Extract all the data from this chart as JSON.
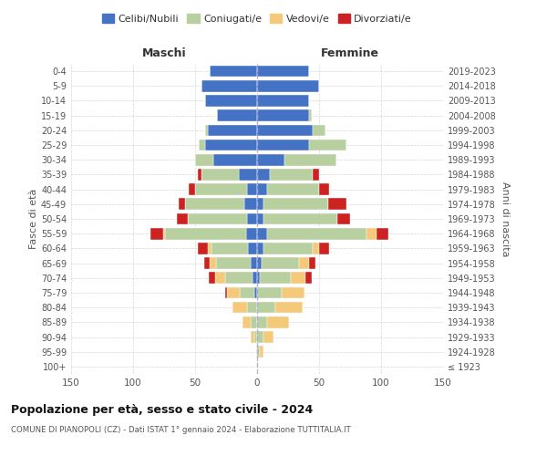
{
  "age_groups": [
    "100+",
    "95-99",
    "90-94",
    "85-89",
    "80-84",
    "75-79",
    "70-74",
    "65-69",
    "60-64",
    "55-59",
    "50-54",
    "45-49",
    "40-44",
    "35-39",
    "30-34",
    "25-29",
    "20-24",
    "15-19",
    "10-14",
    "5-9",
    "0-4"
  ],
  "birth_years": [
    "≤ 1923",
    "1924-1928",
    "1929-1933",
    "1934-1938",
    "1939-1943",
    "1944-1948",
    "1949-1953",
    "1954-1958",
    "1959-1963",
    "1964-1968",
    "1969-1973",
    "1974-1978",
    "1979-1983",
    "1984-1988",
    "1989-1993",
    "1994-1998",
    "1999-2003",
    "2004-2008",
    "2009-2013",
    "2014-2018",
    "2019-2023"
  ],
  "colors": {
    "celibi": "#4472c4",
    "coniugati": "#b8cfa0",
    "vedovi": "#f5c97a",
    "divorziati": "#cc2222"
  },
  "males": {
    "celibi": [
      0,
      0,
      0,
      0,
      0,
      2,
      4,
      5,
      7,
      9,
      8,
      10,
      8,
      15,
      35,
      42,
      40,
      32,
      42,
      45,
      38
    ],
    "coniugati": [
      0,
      0,
      2,
      5,
      8,
      12,
      22,
      28,
      30,
      65,
      48,
      48,
      42,
      30,
      15,
      5,
      2,
      0,
      0,
      0,
      0
    ],
    "vedovi": [
      0,
      1,
      3,
      7,
      12,
      10,
      8,
      5,
      3,
      2,
      0,
      0,
      0,
      0,
      0,
      0,
      0,
      0,
      0,
      0,
      0
    ],
    "divorziati": [
      0,
      0,
      0,
      0,
      0,
      2,
      5,
      5,
      8,
      10,
      9,
      5,
      5,
      3,
      0,
      0,
      0,
      0,
      0,
      0,
      0
    ]
  },
  "females": {
    "celibi": [
      0,
      0,
      0,
      0,
      0,
      0,
      2,
      4,
      5,
      8,
      5,
      5,
      8,
      10,
      22,
      42,
      45,
      42,
      42,
      50,
      42
    ],
    "coniugati": [
      0,
      2,
      5,
      8,
      15,
      20,
      25,
      30,
      40,
      80,
      60,
      52,
      42,
      35,
      42,
      30,
      10,
      2,
      0,
      0,
      0
    ],
    "vedovi": [
      1,
      3,
      8,
      18,
      22,
      18,
      12,
      8,
      5,
      8,
      0,
      0,
      0,
      0,
      0,
      0,
      0,
      0,
      0,
      0,
      0
    ],
    "divorziati": [
      0,
      0,
      0,
      0,
      0,
      0,
      5,
      5,
      8,
      10,
      10,
      15,
      8,
      5,
      0,
      0,
      0,
      0,
      0,
      0,
      0
    ]
  },
  "title_main": "Popolazione per età, sesso e stato civile - 2024",
  "title_sub": "COMUNE DI PIANOPOLI (CZ) - Dati ISTAT 1° gennaio 2024 - Elaborazione TUTTITALIA.IT",
  "xlabel_left": "Maschi",
  "xlabel_right": "Femmine",
  "ylabel_left": "Fasce di età",
  "ylabel_right": "Anni di nascita",
  "xlim": 150,
  "legend_labels": [
    "Celibi/Nubili",
    "Coniugati/e",
    "Vedovi/e",
    "Divorziati/e"
  ],
  "background_color": "#ffffff",
  "grid_color": "#cccccc"
}
